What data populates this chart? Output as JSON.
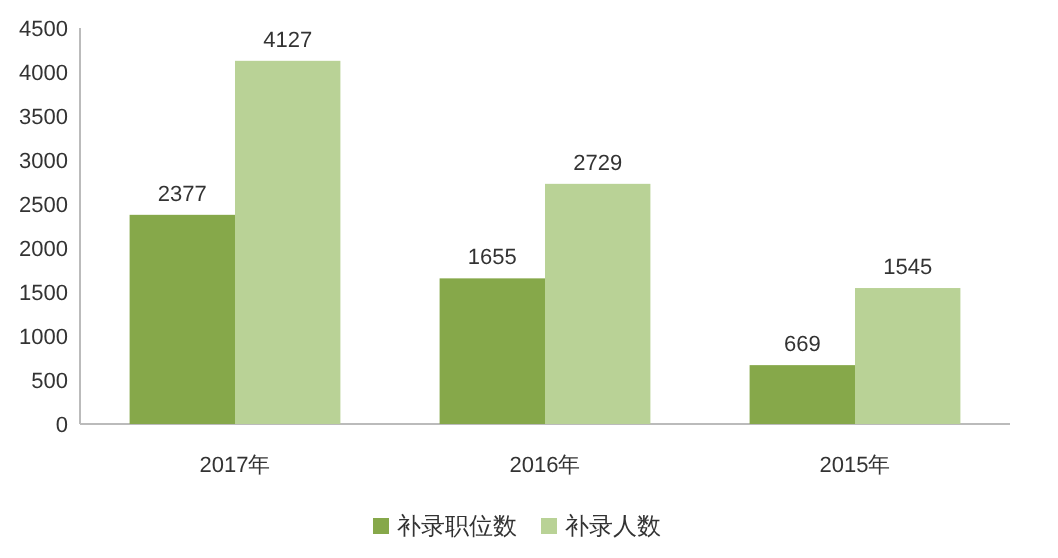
{
  "chart_data": {
    "type": "bar",
    "categories": [
      "2017年",
      "2016年",
      "2015年"
    ],
    "series": [
      {
        "name": "补录职位数",
        "color": "#86a84a",
        "values": [
          2377,
          1655,
          669
        ]
      },
      {
        "name": "补录人数",
        "color": "#b9d296",
        "values": [
          4127,
          2729,
          1545
        ]
      }
    ],
    "ylim": [
      0,
      4500
    ],
    "yticks": [
      0,
      500,
      1000,
      1500,
      2000,
      2500,
      3000,
      3500,
      4000,
      4500
    ],
    "data_labels": true,
    "legend": "bottom"
  }
}
